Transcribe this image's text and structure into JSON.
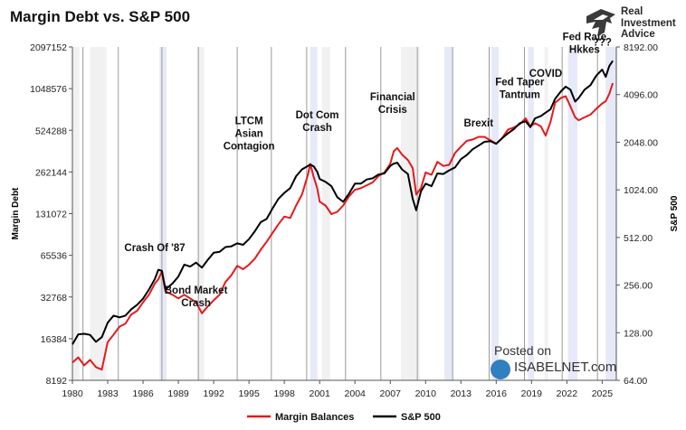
{
  "title": "Margin Debt vs. S&P 500",
  "logo": {
    "line1": "Real",
    "line2": "Investment",
    "line3": "Advice"
  },
  "watermark": {
    "line1": "Posted on",
    "line2": "ISABELNET.com"
  },
  "chart_data": {
    "type": "line",
    "title": "Margin Debt vs. S&P 500",
    "xlabel": "",
    "ylabel_left": "Margin Debt",
    "ylabel_right": "S&P 500",
    "xlim": [
      1980,
      2026.2
    ],
    "ylim_left": [
      8192,
      2097152
    ],
    "ylim_right": [
      64,
      8192
    ],
    "y_scale": "log2",
    "x_ticks": [
      "1980",
      "1983",
      "1986",
      "1989",
      "1992",
      "1995",
      "1998",
      "2001",
      "2004",
      "2007",
      "2010",
      "2013",
      "2016",
      "2019",
      "2022",
      "2025"
    ],
    "y_left_ticks": [
      "8192",
      "16384",
      "32768",
      "65536",
      "131072",
      "262144",
      "524288",
      "1048576",
      "2097152"
    ],
    "y_right_ticks": [
      "64.00",
      "128.00",
      "256.00",
      "512.00",
      "1024.00",
      "2048.00",
      "4096.00",
      "8192.00"
    ],
    "recessions": [
      [
        1980.0,
        1980.6
      ],
      [
        1981.5,
        1982.9
      ],
      [
        1990.6,
        1991.2
      ],
      [
        2001.2,
        2001.9
      ],
      [
        2007.9,
        2009.5
      ],
      [
        2020.1,
        2020.4
      ]
    ],
    "shaded_periods": [
      [
        1987.4,
        1988.0
      ],
      [
        2000.2,
        2000.8
      ],
      [
        2011.6,
        2012.3
      ],
      [
        2015.6,
        2016.2
      ],
      [
        2018.7,
        2019.2
      ],
      [
        2022.1,
        2022.9
      ],
      [
        2025.3,
        2026.2
      ]
    ],
    "event_lines": [
      1980.9,
      1983.9,
      1987.6,
      1990.7,
      1994.0,
      1996.9,
      1999.9,
      2003.2,
      2006.2,
      2009.3,
      2012.3,
      2015.4,
      2018.4,
      2021.6,
      2024.6
    ],
    "series": [
      {
        "name": "Margin Balances",
        "color": "#e31a1c",
        "axis": "left",
        "x": [
          1980,
          1980.5,
          1981,
          1981.5,
          1982,
          1982.5,
          1983,
          1983.5,
          1984,
          1984.5,
          1985,
          1985.5,
          1986,
          1986.5,
          1987,
          1987.3,
          1987.6,
          1987.9,
          1988.5,
          1989,
          1989.5,
          1990,
          1990.5,
          1991,
          1991.5,
          1992,
          1992.5,
          1993,
          1993.5,
          1994,
          1994.5,
          1995,
          1995.5,
          1996,
          1996.5,
          1997,
          1997.5,
          1998,
          1998.5,
          1999,
          1999.5,
          2000,
          2000.2,
          2000.5,
          2000.8,
          2001,
          2001.5,
          2002,
          2002.5,
          2003,
          2003.5,
          2004,
          2004.5,
          2005,
          2005.5,
          2006,
          2006.5,
          2007,
          2007.3,
          2007.6,
          2008,
          2008.5,
          2008.9,
          2009.2,
          2009.6,
          2010,
          2010.5,
          2011,
          2011.5,
          2012,
          2012.5,
          2013,
          2013.5,
          2014,
          2014.5,
          2015,
          2015.5,
          2016,
          2016.5,
          2017,
          2017.5,
          2018,
          2018.5,
          2018.9,
          2019.3,
          2019.8,
          2020.2,
          2020.6,
          2021,
          2021.5,
          2021.9,
          2022.3,
          2022.7,
          2023,
          2023.5,
          2024,
          2024.5,
          2025,
          2025.3,
          2025.6,
          2025.9
        ],
        "values": [
          11000,
          12000,
          10500,
          11500,
          10200,
          9800,
          15500,
          17500,
          20000,
          21000,
          24500,
          26000,
          30000,
          34000,
          41000,
          44000,
          50000,
          36000,
          34000,
          32000,
          34000,
          32000,
          30000,
          25000,
          28000,
          31000,
          34000,
          42000,
          47000,
          55000,
          52000,
          56000,
          62000,
          72000,
          82000,
          95000,
          110000,
          125000,
          122000,
          150000,
          180000,
          250000,
          300000,
          240000,
          200000,
          160000,
          150000,
          130000,
          135000,
          150000,
          175000,
          195000,
          200000,
          210000,
          220000,
          245000,
          260000,
          300000,
          370000,
          390000,
          350000,
          320000,
          280000,
          180000,
          200000,
          260000,
          250000,
          310000,
          290000,
          295000,
          360000,
          400000,
          440000,
          450000,
          470000,
          470000,
          445000,
          420000,
          460000,
          530000,
          550000,
          580000,
          640000,
          560000,
          590000,
          560000,
          480000,
          600000,
          830000,
          900000,
          925000,
          780000,
          650000,
          620000,
          650000,
          680000,
          750000,
          820000,
          850000,
          960000,
          1150000
        ]
      },
      {
        "name": "S&P 500",
        "color": "#000000",
        "axis": "right",
        "x": [
          1980,
          1980.5,
          1981,
          1981.5,
          1982,
          1982.5,
          1983,
          1983.5,
          1984,
          1984.5,
          1985,
          1985.5,
          1986,
          1986.5,
          1987,
          1987.3,
          1987.6,
          1987.9,
          1988.5,
          1989,
          1989.5,
          1990,
          1990.5,
          1991,
          1991.5,
          1992,
          1992.5,
          1993,
          1993.5,
          1994,
          1994.5,
          1995,
          1995.5,
          1996,
          1996.5,
          1997,
          1997.5,
          1998,
          1998.5,
          1999,
          1999.5,
          2000,
          2000.2,
          2000.5,
          2000.8,
          2001,
          2001.5,
          2002,
          2002.5,
          2003,
          2003.5,
          2004,
          2004.5,
          2005,
          2005.5,
          2006,
          2006.5,
          2007,
          2007.3,
          2007.6,
          2008,
          2008.5,
          2008.9,
          2009.2,
          2009.6,
          2010,
          2010.5,
          2011,
          2011.5,
          2012,
          2012.5,
          2013,
          2013.5,
          2014,
          2014.5,
          2015,
          2015.5,
          2016,
          2016.5,
          2017,
          2017.5,
          2018,
          2018.5,
          2018.9,
          2019.3,
          2019.8,
          2020.2,
          2020.6,
          2021,
          2021.5,
          2021.9,
          2022.3,
          2022.7,
          2023,
          2023.5,
          2024,
          2024.5,
          2025,
          2025.3,
          2025.6,
          2025.9
        ],
        "values": [
          108,
          125,
          126,
          124,
          112,
          120,
          148,
          164,
          160,
          164,
          180,
          192,
          210,
          240,
          280,
          320,
          315,
          240,
          262,
          290,
          345,
          335,
          355,
          330,
          370,
          410,
          415,
          445,
          450,
          470,
          460,
          500,
          560,
          640,
          670,
          780,
          900,
          980,
          1050,
          1250,
          1380,
          1450,
          1480,
          1440,
          1330,
          1200,
          1150,
          1080,
          920,
          860,
          970,
          1120,
          1120,
          1190,
          1210,
          1280,
          1300,
          1450,
          1500,
          1520,
          1380,
          1290,
          900,
          760,
          1000,
          1120,
          1080,
          1300,
          1290,
          1360,
          1420,
          1600,
          1700,
          1850,
          1950,
          2060,
          2080,
          2000,
          2170,
          2330,
          2480,
          2700,
          2780,
          2550,
          2900,
          3000,
          3150,
          3300,
          3850,
          4300,
          4600,
          4400,
          3700,
          3900,
          4400,
          4700,
          5400,
          5900,
          5300,
          6200,
          6700
        ]
      }
    ],
    "annotations": [
      {
        "label": "Crash Of '87",
        "x": 1987.0,
        "y": 70000,
        "axis": "left"
      },
      {
        "label": "Bond Market\nCrash",
        "x": 1990.5,
        "y": 28000,
        "axis": "left"
      },
      {
        "label": "LTCM\nAsian\nContagion",
        "x": 1995.0,
        "y": 380000,
        "axis": "left"
      },
      {
        "label": "Dot Com\nCrash",
        "x": 2000.8,
        "y": 520000,
        "axis": "left"
      },
      {
        "label": "Financial\nCrisis",
        "x": 2007.2,
        "y": 700000,
        "axis": "left"
      },
      {
        "label": "Brexit",
        "x": 2014.5,
        "y": 560000,
        "axis": "left"
      },
      {
        "label": "Fed Taper\nTantrum",
        "x": 2018.0,
        "y": 900000,
        "axis": "left"
      },
      {
        "label": "COVID",
        "x": 2020.2,
        "y": 1280000,
        "axis": "left"
      },
      {
        "label": "Fed Rate\nHkkes",
        "x": 2023.5,
        "y": 1900000,
        "axis": "left"
      },
      {
        "label": "???",
        "x": 2025.0,
        "y": 2150000,
        "axis": "left"
      }
    ]
  }
}
